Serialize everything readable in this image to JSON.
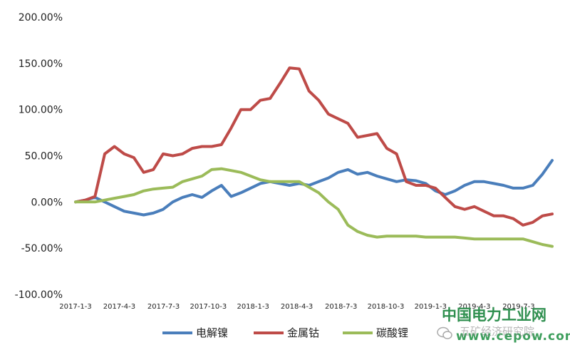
{
  "watermark": {
    "text_cn": "中国电力工业网",
    "site": "www.cepow.com",
    "subtitle": "五矿经济研究院"
  },
  "chart_data": {
    "type": "line",
    "title": "",
    "xlabel": "",
    "ylabel": "",
    "ylim": [
      -100,
      200
    ],
    "yticks": [
      -100,
      -50,
      0,
      50,
      100,
      150,
      200
    ],
    "ytick_labels": [
      "-100.00%",
      "-50.00%",
      "0.00%",
      "50.00%",
      "100.00%",
      "150.00%",
      "200.00%"
    ],
    "xticks": [
      "2017-1-3",
      "2017-4-3",
      "2017-7-3",
      "2017-10-3",
      "2018-1-3",
      "2018-4-3",
      "2018-7-3",
      "2018-10-3",
      "2019-1-3",
      "2019-4-3",
      "2019-7-3"
    ],
    "grid": false,
    "legend_position": "bottom",
    "x": [
      "2017-1-3",
      "2017-1-23",
      "2017-2-12",
      "2017-3-4",
      "2017-3-24",
      "2017-4-13",
      "2017-5-3",
      "2017-5-23",
      "2017-6-12",
      "2017-7-2",
      "2017-7-22",
      "2017-8-11",
      "2017-8-31",
      "2017-9-20",
      "2017-10-10",
      "2017-10-30",
      "2017-11-19",
      "2017-12-9",
      "2017-12-29",
      "2018-1-18",
      "2018-2-7",
      "2018-2-27",
      "2018-3-19",
      "2018-4-8",
      "2018-4-28",
      "2018-5-18",
      "2018-6-7",
      "2018-6-27",
      "2018-7-17",
      "2018-8-6",
      "2018-8-26",
      "2018-9-15",
      "2018-10-5",
      "2018-10-25",
      "2018-11-14",
      "2018-12-4",
      "2018-12-24",
      "2019-1-13",
      "2019-2-2",
      "2019-2-22",
      "2019-3-14",
      "2019-4-3",
      "2019-4-23",
      "2019-5-13",
      "2019-6-2",
      "2019-6-22",
      "2019-7-12",
      "2019-8-1",
      "2019-8-21",
      "2019-9-10"
    ],
    "series": [
      {
        "name": "电解镍",
        "color": "#4a7ebb",
        "values": [
          0,
          2,
          5,
          0,
          -5,
          -10,
          -12,
          -14,
          -12,
          -8,
          0,
          5,
          8,
          5,
          12,
          18,
          6,
          10,
          15,
          20,
          22,
          20,
          18,
          20,
          18,
          22,
          26,
          32,
          35,
          30,
          32,
          28,
          25,
          22,
          24,
          23,
          20,
          12,
          8,
          12,
          18,
          22,
          22,
          20,
          18,
          15,
          15,
          18,
          30,
          45
        ]
      },
      {
        "name": "金属钴",
        "color": "#be4b48",
        "values": [
          0,
          2,
          6,
          52,
          60,
          52,
          48,
          32,
          35,
          52,
          50,
          52,
          58,
          60,
          60,
          62,
          80,
          100,
          100,
          110,
          112,
          128,
          145,
          144,
          120,
          110,
          95,
          90,
          85,
          70,
          72,
          74,
          58,
          52,
          22,
          18,
          18,
          15,
          5,
          -5,
          -8,
          -5,
          -10,
          -15,
          -15,
          -18,
          -25,
          -22,
          -15,
          -13
        ]
      },
      {
        "name": "碳酸锂",
        "color": "#9bbb59",
        "values": [
          0,
          0,
          0,
          2,
          4,
          6,
          8,
          12,
          14,
          15,
          16,
          22,
          25,
          28,
          35,
          36,
          34,
          32,
          28,
          24,
          22,
          22,
          22,
          22,
          16,
          10,
          0,
          -8,
          -25,
          -32,
          -36,
          -38,
          -37,
          -37,
          -37,
          -37,
          -38,
          -38,
          -38,
          -38,
          -39,
          -40,
          -40,
          -40,
          -40,
          -40,
          -40,
          -43,
          -46,
          -48
        ]
      }
    ]
  }
}
